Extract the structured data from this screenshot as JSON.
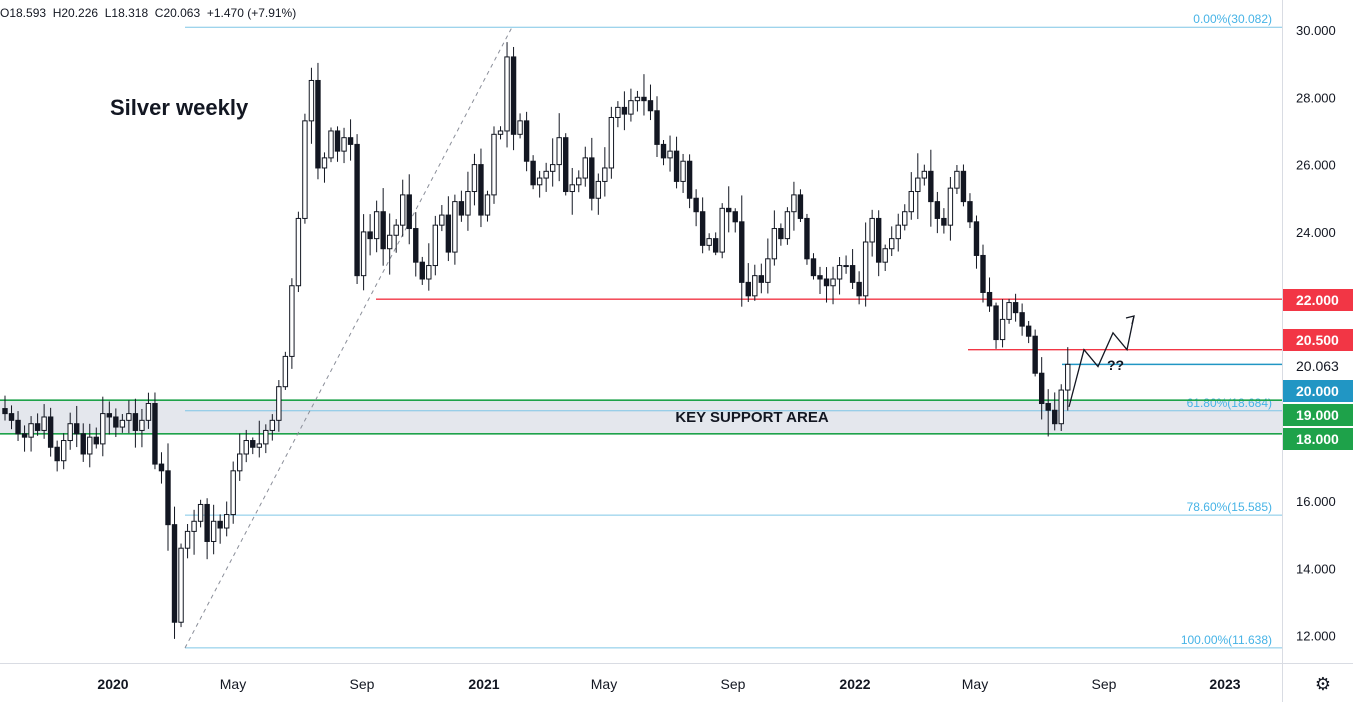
{
  "ohlc_readout": "O18.593  H20.226  L18.318  C20.063  +1.470 (+7.91%)",
  "chart_data": {
    "type": "candlestick",
    "title": "Silver weekly",
    "ylim": [
      11.3,
      30.6
    ],
    "y_ticks": [
      "30.000",
      "28.000",
      "26.000",
      "24.000",
      "22.000",
      "20.000",
      "18.000",
      "16.000",
      "14.000",
      "12.000"
    ],
    "x_ticks": [
      "2020",
      "May",
      "Sep",
      "2021",
      "May",
      "Sep",
      "2022",
      "May",
      "Sep",
      "2023"
    ],
    "last_price": "20.063",
    "annotations": {
      "support_zone": {
        "label": "KEY SUPPORT AREA",
        "low": 18.0,
        "high": 19.0
      },
      "question": "??"
    },
    "price_labels": [
      {
        "value": "22.000",
        "color": "#f23645"
      },
      {
        "value": "20.500",
        "color": "#f23645"
      },
      {
        "value": "20.063",
        "color": "#ffffff"
      },
      {
        "value": "20.000",
        "color": "#2196c4"
      },
      {
        "value": "19.000",
        "color": "#1ea24a"
      },
      {
        "value": "18.000",
        "color": "#1ea24a"
      }
    ],
    "fib_levels": [
      {
        "label": "0.00%(30.082)",
        "value": 30.082
      },
      {
        "label": "61.80%(18.684)",
        "value": 18.684
      },
      {
        "label": "78.60%(15.585)",
        "value": 15.585
      },
      {
        "label": "100.00%(11.638)",
        "value": 11.638
      }
    ],
    "horizontal_lines": [
      {
        "value": 22.0,
        "color": "#f23645"
      },
      {
        "value": 20.5,
        "color": "#f23645"
      },
      {
        "value": 20.063,
        "color": "#2196c4"
      },
      {
        "value": 19.0,
        "color": "#1ea24a"
      },
      {
        "value": 18.0,
        "color": "#1ea24a"
      }
    ],
    "closes": [
      18.6,
      18.4,
      18.0,
      17.9,
      18.3,
      18.1,
      18.5,
      17.6,
      17.2,
      17.8,
      18.3,
      18.0,
      17.4,
      17.9,
      17.7,
      18.6,
      18.5,
      18.2,
      18.4,
      18.6,
      18.1,
      18.4,
      18.9,
      17.1,
      16.9,
      15.3,
      12.4,
      14.6,
      15.1,
      15.4,
      15.9,
      14.8,
      15.4,
      15.2,
      15.6,
      16.9,
      17.4,
      17.8,
      17.6,
      17.7,
      18.1,
      18.4,
      19.4,
      20.3,
      22.4,
      24.4,
      27.3,
      28.5,
      25.9,
      26.2,
      27.0,
      26.4,
      26.8,
      26.6,
      22.7,
      24.0,
      23.8,
      24.6,
      23.5,
      23.9,
      24.2,
      25.1,
      24.1,
      23.1,
      22.6,
      23.0,
      24.2,
      24.5,
      23.4,
      24.9,
      24.5,
      25.2,
      26.0,
      24.5,
      25.1,
      26.9,
      27.0,
      29.2,
      26.9,
      27.3,
      26.1,
      25.4,
      25.6,
      25.8,
      26.0,
      26.8,
      25.2,
      25.4,
      25.6,
      26.2,
      25.0,
      25.5,
      25.9,
      27.4,
      27.7,
      27.5,
      27.9,
      28.0,
      27.9,
      27.6,
      26.6,
      26.2,
      26.4,
      25.5,
      26.1,
      25.0,
      24.6,
      23.6,
      23.8,
      23.4,
      24.7,
      24.6,
      24.3,
      22.5,
      22.1,
      22.7,
      22.5,
      23.2,
      24.1,
      23.8,
      24.6,
      25.1,
      24.4,
      23.2,
      22.7,
      22.6,
      22.4,
      22.6,
      23.0,
      23.0,
      22.5,
      22.1,
      23.7,
      24.4,
      23.1,
      23.5,
      23.8,
      24.2,
      24.6,
      25.2,
      25.6,
      25.8,
      24.9,
      24.4,
      24.2,
      25.3,
      25.8,
      24.9,
      24.3,
      23.3,
      22.2,
      21.8,
      20.8,
      21.4,
      21.9,
      21.6,
      21.2,
      20.9,
      19.8,
      18.9,
      18.7,
      18.3,
      19.3,
      20.063
    ]
  }
}
